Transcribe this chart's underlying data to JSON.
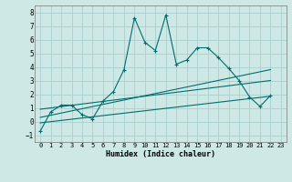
{
  "xlabel": "Humidex (Indice chaleur)",
  "ylabel": "",
  "xlim": [
    -0.5,
    23.5
  ],
  "ylim": [
    -1.5,
    8.5
  ],
  "xticks": [
    0,
    1,
    2,
    3,
    4,
    5,
    6,
    7,
    8,
    9,
    10,
    11,
    12,
    13,
    14,
    15,
    16,
    17,
    18,
    19,
    20,
    21,
    22,
    23
  ],
  "yticks": [
    -1,
    0,
    1,
    2,
    3,
    4,
    5,
    6,
    7,
    8
  ],
  "bg_color": "#cde8e5",
  "grid_color": "#aacfcc",
  "line_color": "#006e6e",
  "line1_x": [
    0,
    1,
    2,
    3,
    4,
    5,
    6,
    7,
    8,
    9,
    10,
    11,
    12,
    13,
    14,
    15,
    16,
    17,
    18,
    19,
    20,
    21,
    22
  ],
  "line1_y": [
    -0.7,
    0.7,
    1.2,
    1.2,
    0.5,
    0.2,
    1.5,
    2.2,
    3.8,
    7.6,
    5.8,
    5.2,
    7.8,
    4.2,
    4.5,
    5.4,
    5.4,
    4.7,
    3.9,
    3.0,
    1.8,
    1.1,
    1.9
  ],
  "line2_x": [
    0,
    22
  ],
  "line2_y": [
    0.3,
    3.8
  ],
  "line3_x": [
    0,
    22
  ],
  "line3_y": [
    -0.1,
    1.85
  ],
  "line4_x": [
    0,
    22
  ],
  "line4_y": [
    0.9,
    3.0
  ]
}
